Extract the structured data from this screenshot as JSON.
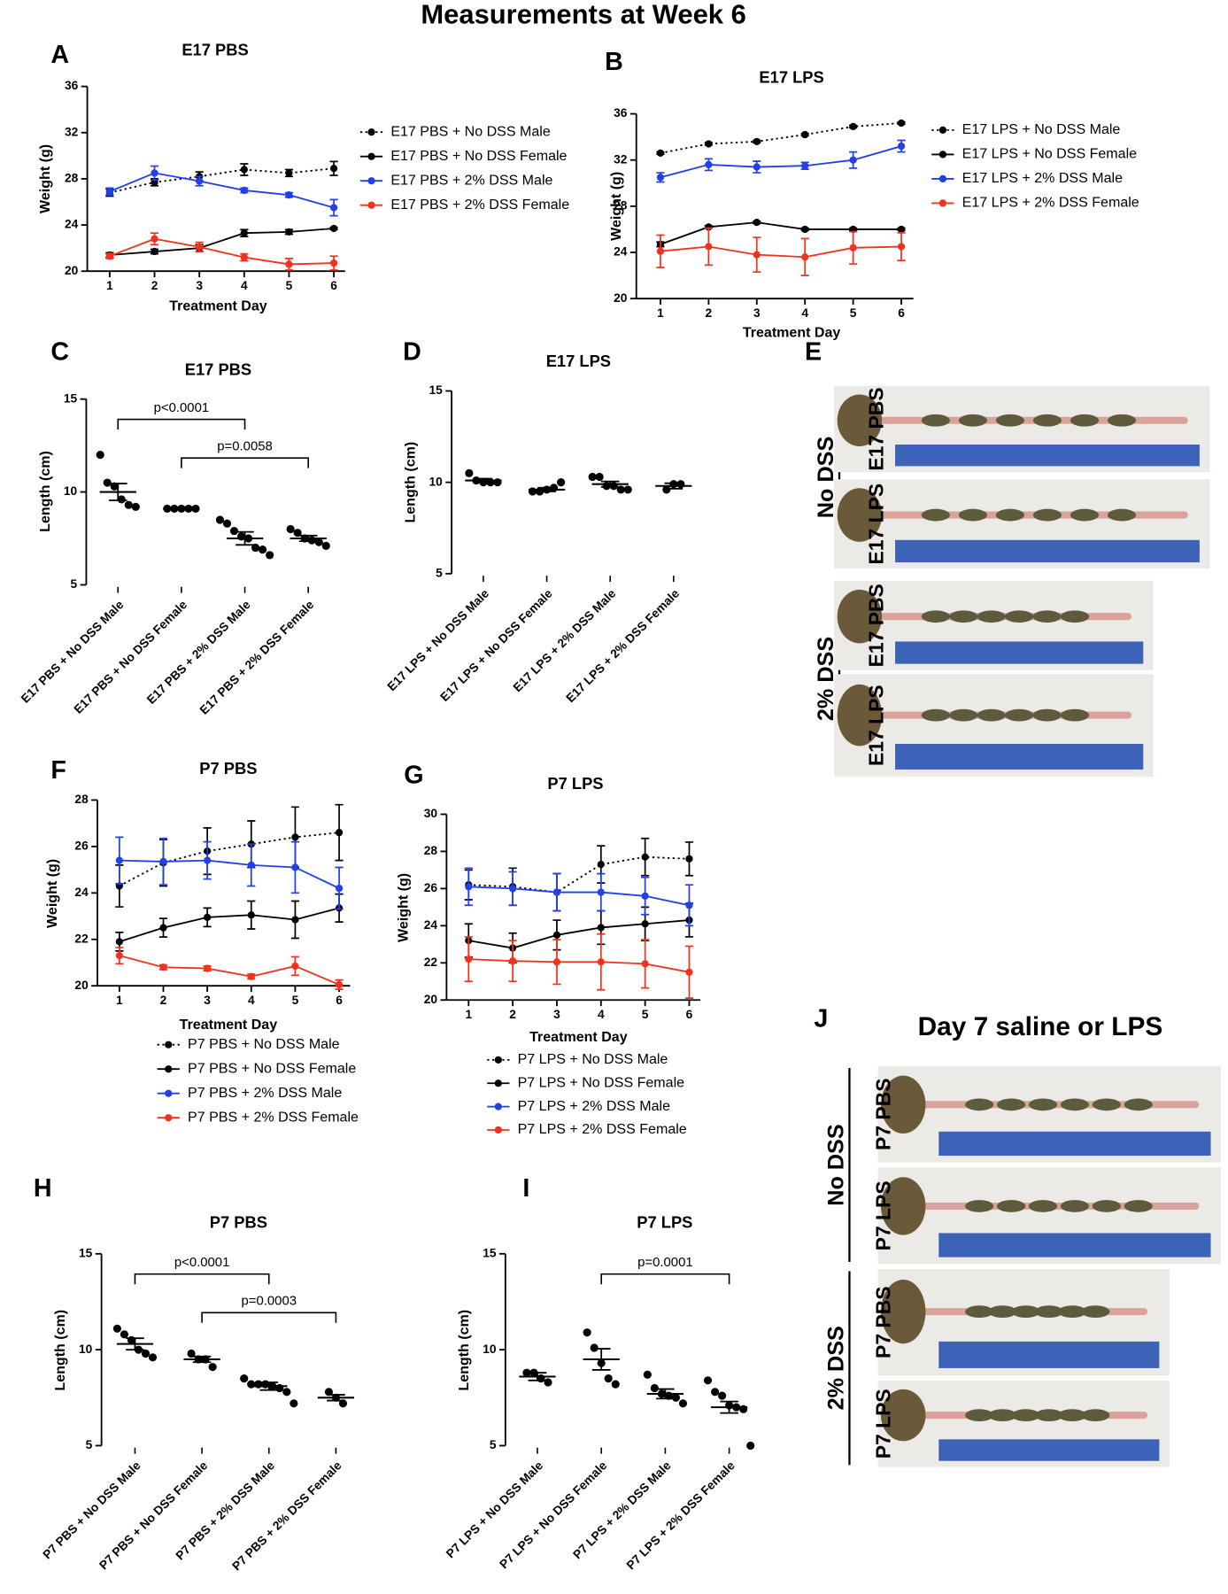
{
  "title": "Measurements at Week 6",
  "chart_data": [
    {
      "panel": "A",
      "type": "line",
      "title": "E17 PBS",
      "x_label": "Treatment Day",
      "y_label": "Weight (g)",
      "x": [
        1,
        2,
        3,
        4,
        5,
        6
      ],
      "xlim": [
        0.5,
        6.25
      ],
      "xticks": [
        1,
        2,
        3,
        4,
        5,
        6
      ],
      "ylim": [
        20,
        36
      ],
      "yticks": [
        20,
        24,
        28,
        32,
        36
      ],
      "series": [
        {
          "name": "E17 PBS + No DSS Male",
          "color": "#000000",
          "line_style": "dotted",
          "values": [
            26.8,
            27.7,
            28.2,
            28.8,
            28.5,
            28.9
          ],
          "errors": [
            0.3,
            0.3,
            0.4,
            0.5,
            0.3,
            0.6
          ]
        },
        {
          "name": "E17 PBS + No DSS Female",
          "color": "#000000",
          "line_style": "solid",
          "values": [
            21.4,
            21.7,
            22.0,
            23.3,
            23.4,
            23.7
          ],
          "errors": [
            0.2,
            0.2,
            0.3,
            0.3,
            0.2,
            0.1
          ]
        },
        {
          "name": "E17 PBS + 2% DSS Male",
          "color": "#2140e8",
          "line_style": "solid",
          "values": [
            26.9,
            28.5,
            27.8,
            27.0,
            26.6,
            25.5
          ],
          "errors": [
            0.3,
            0.6,
            0.4,
            0.2,
            0.2,
            0.7
          ]
        },
        {
          "name": "E17 PBS + 2% DSS Female",
          "color": "#f0321e",
          "line_style": "solid",
          "values": [
            21.3,
            22.8,
            22.1,
            21.2,
            20.6,
            20.7
          ],
          "errors": [
            0.2,
            0.5,
            0.4,
            0.3,
            0.5,
            0.6
          ]
        }
      ]
    },
    {
      "panel": "B",
      "type": "line",
      "title": "E17 LPS",
      "x_label": "Treatment Day",
      "y_label": "Weight (g)",
      "x": [
        1,
        2,
        3,
        4,
        5,
        6
      ],
      "xlim": [
        0.5,
        6.25
      ],
      "xticks": [
        1,
        2,
        3,
        4,
        5,
        6
      ],
      "ylim": [
        20,
        36
      ],
      "yticks": [
        20,
        24,
        28,
        32,
        36
      ],
      "series": [
        {
          "name": "E17 LPS + No DSS Male",
          "color": "#000000",
          "line_style": "dotted",
          "values": [
            32.6,
            33.4,
            33.6,
            34.2,
            34.9,
            35.2
          ],
          "errors": [
            0.1,
            0.1,
            0.1,
            0.1,
            0.1,
            0.1
          ]
        },
        {
          "name": "E17 LPS + No DSS Female",
          "color": "#000000",
          "line_style": "solid",
          "values": [
            24.7,
            26.2,
            26.6,
            26.0,
            26.0,
            26.0
          ],
          "errors": [
            0.2,
            0.1,
            0.1,
            0.1,
            0.1,
            0.1
          ]
        },
        {
          "name": "E17 LPS + 2% DSS Male",
          "color": "#2140e8",
          "line_style": "solid",
          "values": [
            30.5,
            31.6,
            31.4,
            31.5,
            32.0,
            33.2
          ],
          "errors": [
            0.4,
            0.5,
            0.5,
            0.3,
            0.7,
            0.5
          ]
        },
        {
          "name": "E17 LPS + 2% DSS Female",
          "color": "#f0321e",
          "line_style": "solid",
          "values": [
            24.1,
            24.5,
            23.8,
            23.6,
            24.4,
            24.5
          ],
          "errors": [
            1.4,
            1.6,
            1.5,
            1.6,
            1.4,
            1.2
          ]
        }
      ]
    },
    {
      "panel": "C",
      "type": "dot",
      "title": "E17 PBS",
      "y_label": "Length (cm)",
      "ylim": [
        5,
        15
      ],
      "yticks": [
        5,
        10,
        15
      ],
      "categories": [
        "E17 PBS + No DSS Male",
        "E17 PBS + No DSS Female",
        "E17 PBS + 2% DSS Male",
        "E17 PBS + 2% DSS Female"
      ],
      "points": [
        [
          12.0,
          10.5,
          10.3,
          9.6,
          9.3,
          9.2
        ],
        [
          9.1,
          9.1,
          9.1,
          9.1,
          9.1
        ],
        [
          8.5,
          8.3,
          7.9,
          7.6,
          7.5,
          7.0,
          6.9,
          6.6
        ],
        [
          8.0,
          7.8,
          7.5,
          7.4,
          7.3,
          7.1
        ]
      ],
      "means": [
        10.0,
        9.1,
        7.5,
        7.5
      ],
      "sems": [
        0.45,
        0.05,
        0.35,
        0.15
      ],
      "comparisons": [
        {
          "between": [
            0,
            2
          ],
          "label": "p<0.0001"
        },
        {
          "between": [
            1,
            3
          ],
          "label": "p=0.0058"
        }
      ]
    },
    {
      "panel": "D",
      "type": "dot",
      "title": "E17 LPS",
      "y_label": "Length (cm)",
      "ylim": [
        5,
        15
      ],
      "yticks": [
        5,
        10,
        15
      ],
      "categories": [
        "E17 LPS + No DSS Male",
        "E17 LPS + No DSS Female",
        "E17 LPS + 2% DSS Male",
        "E17 LPS + 2% DSS Female"
      ],
      "points": [
        [
          10.5,
          10.1,
          10.0,
          10.0,
          10.0
        ],
        [
          9.5,
          9.5,
          9.6,
          9.7,
          10.0
        ],
        [
          10.3,
          10.3,
          9.8,
          9.8,
          9.6,
          9.6
        ],
        [
          9.6,
          9.9,
          9.9
        ]
      ],
      "means": [
        10.1,
        9.6,
        9.9,
        9.8
      ],
      "sems": [
        0.1,
        0.1,
        0.15,
        0.15
      ],
      "comparisons": []
    },
    {
      "panel": "F",
      "type": "line",
      "title": "P7 PBS",
      "x_label": "Treatment Day",
      "y_label": "Weight (g)",
      "x": [
        1,
        2,
        3,
        4,
        5,
        6
      ],
      "xlim": [
        0.5,
        6.25
      ],
      "xticks": [
        1,
        2,
        3,
        4,
        5,
        6
      ],
      "ylim": [
        20,
        28
      ],
      "yticks": [
        20,
        22,
        24,
        26,
        28
      ],
      "series": [
        {
          "name": "P7 PBS + No DSS Male",
          "color": "#000000",
          "line_style": "dotted",
          "values": [
            24.3,
            25.3,
            25.8,
            26.1,
            26.4,
            26.6
          ],
          "errors": [
            0.9,
            1.0,
            1.0,
            1.0,
            1.3,
            1.2
          ]
        },
        {
          "name": "P7 PBS + No DSS Female",
          "color": "#000000",
          "line_style": "solid",
          "values": [
            21.9,
            22.5,
            22.95,
            23.05,
            22.85,
            23.35
          ],
          "errors": [
            0.4,
            0.4,
            0.4,
            0.6,
            0.8,
            0.6
          ]
        },
        {
          "name": "P7 PBS + 2% DSS  Male",
          "color": "#2140e8",
          "line_style": "solid",
          "values": [
            25.4,
            25.35,
            25.4,
            25.2,
            25.1,
            24.2
          ],
          "errors": [
            1.0,
            1.0,
            0.8,
            0.9,
            1.1,
            0.9
          ]
        },
        {
          "name": "P7 PBS + 2% DSS  Female",
          "color": "#f0321e",
          "line_style": "solid",
          "values": [
            21.3,
            20.8,
            20.75,
            20.4,
            20.85,
            20.05
          ],
          "errors": [
            0.35,
            0.1,
            0.1,
            0.1,
            0.4,
            0.2
          ]
        }
      ]
    },
    {
      "panel": "G",
      "type": "line",
      "title": "P7 LPS",
      "x_label": "Treatment Day",
      "y_label": "Weight (g)",
      "x": [
        1,
        2,
        3,
        4,
        5,
        6
      ],
      "xlim": [
        0.5,
        6.25
      ],
      "xticks": [
        1,
        2,
        3,
        4,
        5,
        6
      ],
      "ylim": [
        20,
        30
      ],
      "yticks": [
        20,
        22,
        24,
        26,
        28,
        30
      ],
      "series": [
        {
          "name": "P7 LPS + No DSS Male",
          "color": "#000000",
          "line_style": "dotted",
          "values": [
            26.2,
            26.1,
            25.8,
            27.3,
            27.7,
            27.6
          ],
          "errors": [
            0.8,
            1.0,
            1.0,
            1.0,
            1.0,
            0.9
          ]
        },
        {
          "name": "P7 LPS + No DSS Female",
          "color": "#000000",
          "line_style": "solid",
          "values": [
            23.2,
            22.8,
            23.5,
            23.9,
            24.1,
            24.3
          ],
          "errors": [
            0.9,
            0.8,
            0.8,
            0.9,
            0.9,
            0.9
          ]
        },
        {
          "name": "P7 LPS + 2% DSS  Male",
          "color": "#2140e8",
          "line_style": "solid",
          "values": [
            26.1,
            26.0,
            25.8,
            25.8,
            25.6,
            25.1
          ],
          "errors": [
            1.0,
            0.9,
            1.0,
            1.0,
            1.0,
            1.1
          ]
        },
        {
          "name": "P7 LPS + 2% DSS  Female",
          "color": "#f0321e",
          "line_style": "solid",
          "values": [
            22.2,
            22.1,
            22.05,
            22.05,
            21.95,
            21.5
          ],
          "errors": [
            1.2,
            1.1,
            1.2,
            1.5,
            1.3,
            1.4
          ]
        }
      ]
    },
    {
      "panel": "H",
      "type": "dot",
      "title": "P7 PBS",
      "y_label": "Length (cm)",
      "ylim": [
        5,
        15
      ],
      "yticks": [
        5,
        10,
        15
      ],
      "categories": [
        "P7 PBS + No DSS Male",
        "P7 PBS + No DSS Female",
        "P7 PBS + 2% DSS Male",
        "P7 PBS + 2% DSS Female"
      ],
      "points": [
        [
          11.1,
          10.8,
          10.5,
          10.0,
          9.8,
          9.6
        ],
        [
          9.8,
          9.5,
          9.5,
          9.1
        ],
        [
          8.5,
          8.2,
          8.2,
          8.2,
          8.1,
          8.0,
          7.8,
          7.2
        ],
        [
          7.8,
          7.5,
          7.2
        ]
      ],
      "means": [
        10.3,
        9.5,
        8.1,
        7.5
      ],
      "sems": [
        0.3,
        0.15,
        0.2,
        0.15
      ],
      "comparisons": [
        {
          "between": [
            0,
            2
          ],
          "label": "p<0.0001"
        },
        {
          "between": [
            1,
            3
          ],
          "label": "p=0.0003"
        }
      ]
    },
    {
      "panel": "I",
      "type": "dot",
      "title": "P7 LPS",
      "y_label": "Length (cm)",
      "ylim": [
        5,
        15
      ],
      "yticks": [
        5,
        10,
        15
      ],
      "categories": [
        "P7 LPS + No DSS Male",
        "P7 LPS + No DSS Female",
        "P7 LPS + 2% DSS Male",
        "P7 LPS + 2% DSS Female"
      ],
      "points": [
        [
          8.8,
          8.8,
          8.5,
          8.3
        ],
        [
          10.9,
          10.1,
          9.3,
          8.5,
          8.2
        ],
        [
          8.7,
          8.0,
          7.7,
          7.6,
          7.5,
          7.2
        ],
        [
          8.4,
          7.8,
          7.6,
          7.1,
          7.0,
          6.9,
          5.0
        ]
      ],
      "means": [
        8.6,
        9.5,
        7.7,
        7.0
      ],
      "sems": [
        0.2,
        0.55,
        0.25,
        0.3
      ],
      "comparisons": [
        {
          "between": [
            1,
            3
          ],
          "label": "p=0.0001"
        }
      ]
    }
  ],
  "photo_panels": [
    {
      "panel": "E",
      "groups": [
        {
          "label": "No DSS",
          "rows": [
            "E17 PBS",
            "E17 LPS"
          ]
        },
        {
          "label": "2% DSS",
          "rows": [
            "E17 PBS",
            "E17 LPS"
          ]
        }
      ]
    },
    {
      "panel": "J",
      "title": "Day 7 saline or LPS",
      "groups": [
        {
          "label": "No DSS",
          "rows": [
            "P7 PBS",
            "P7 LPS"
          ]
        },
        {
          "label": "2% DSS",
          "rows": [
            "P7 PBS",
            "P7 LPS"
          ]
        }
      ]
    }
  ]
}
